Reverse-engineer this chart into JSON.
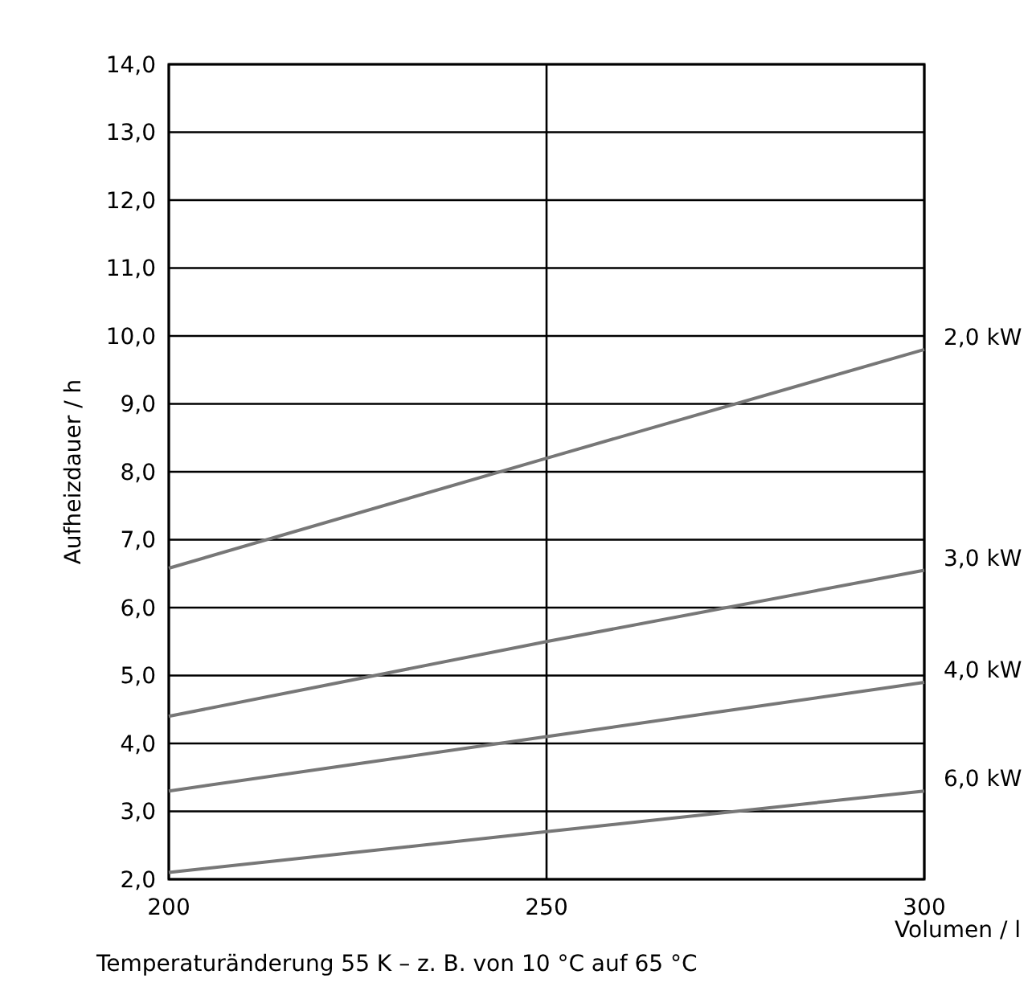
{
  "chart_data": {
    "type": "line",
    "xlabel": "Volumen / l",
    "ylabel": "Aufheizdauer / h",
    "x": [
      200,
      250,
      300
    ],
    "series": [
      {
        "name": "2,0 kW",
        "color": "#777777",
        "values": [
          6.58,
          8.2,
          9.8
        ]
      },
      {
        "name": "3,0 kW",
        "color": "#777777",
        "values": [
          4.4,
          5.5,
          6.55
        ]
      },
      {
        "name": "4,0 kW",
        "color": "#777777",
        "values": [
          3.3,
          4.1,
          4.9
        ]
      },
      {
        "name": "6,0 kW",
        "color": "#777777",
        "values": [
          2.1,
          2.7,
          3.3
        ]
      }
    ],
    "xlim": [
      200,
      300
    ],
    "xticks": [
      200,
      250,
      300
    ],
    "ylim": [
      2,
      14
    ],
    "yticks": [
      {
        "value": 2,
        "label": "2,0"
      },
      {
        "value": 3,
        "label": "3,0"
      },
      {
        "value": 4,
        "label": "4,0"
      },
      {
        "value": 5,
        "label": "5,0"
      },
      {
        "value": 6,
        "label": "6,0"
      },
      {
        "value": 7,
        "label": "7,0"
      },
      {
        "value": 8,
        "label": "8,0"
      },
      {
        "value": 9,
        "label": "9,0"
      },
      {
        "value": 10,
        "label": "10,0"
      },
      {
        "value": 11,
        "label": "11,0"
      },
      {
        "value": 12,
        "label": "12,0"
      },
      {
        "value": 13,
        "label": "13,0"
      },
      {
        "value": 14,
        "label": "14,0"
      }
    ],
    "grid": true,
    "legend": "right",
    "marker": "none",
    "line_style": "solid",
    "annotations": [
      "Temperaturänderung 55 K –  z. B. von 10 °C auf 65 °C"
    ]
  }
}
